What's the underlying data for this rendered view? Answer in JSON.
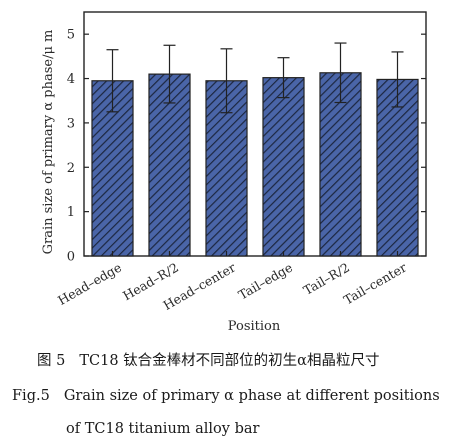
{
  "chart_data": {
    "type": "bar",
    "categories": [
      "Head–edge",
      "Head–R/2",
      "Head–center",
      "Tail–edge",
      "Tail–R/2",
      "Tail–center"
    ],
    "values": [
      3.95,
      4.1,
      3.95,
      4.02,
      4.13,
      3.98
    ],
    "errors": [
      0.7,
      0.65,
      0.72,
      0.45,
      0.67,
      0.62
    ],
    "xlabel": "Position",
    "ylabel": "Grain size of primary α phase/μ m",
    "ylim": [
      0,
      5.5
    ],
    "yticks": [
      0,
      1,
      2,
      3,
      4,
      5
    ],
    "grid": false,
    "bar_color": "#4a65a8",
    "hatch": "diagonal"
  },
  "caption": {
    "cn_label": "图 5",
    "cn_text": "TC18 钛合金棒材不同部位的初生α相晶粒尺寸",
    "en_label": "Fig.5",
    "en_line1": "Grain size of primary α phase at different positions",
    "en_line2": "of TC18 titanium alloy bar"
  }
}
